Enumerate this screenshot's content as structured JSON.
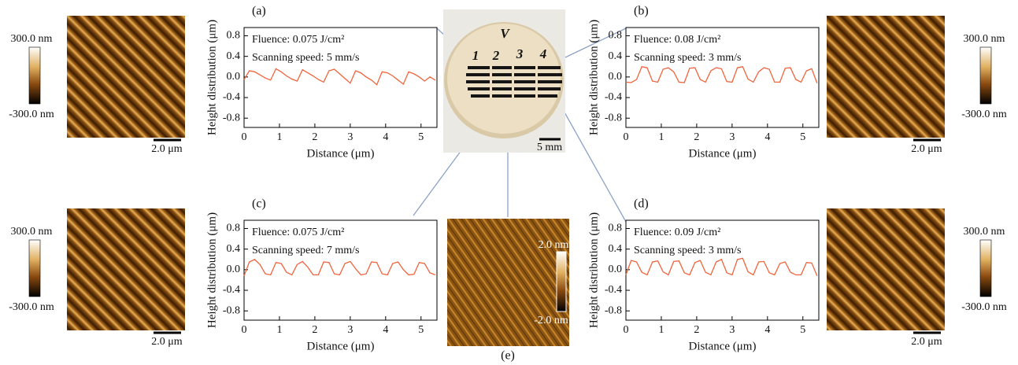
{
  "chart_data": [
    {
      "type": "line",
      "panel": "(a)",
      "annotations": [
        "Fluence: 0.075 J/cm²",
        "Scanning speed: 5 mm/s"
      ],
      "x_label": "Distance (μm)",
      "y_label": "Height distribution (μm)",
      "xlim": [
        0,
        5.45
      ],
      "ylim": [
        -0.98,
        0.96
      ],
      "xticks": [
        0,
        1,
        2,
        3,
        4,
        5
      ],
      "yticks": [
        0.8,
        0.4,
        {
          "value": 0,
          "label": "0.0"
        },
        -0.4,
        -0.8
      ],
      "x": [
        0,
        0.15,
        0.3,
        0.45,
        0.6,
        0.75,
        0.9,
        1.05,
        1.2,
        1.35,
        1.5,
        1.65,
        1.8,
        1.95,
        2.1,
        2.25,
        2.4,
        2.55,
        2.7,
        2.85,
        3,
        3.15,
        3.3,
        3.45,
        3.6,
        3.75,
        3.9,
        4.05,
        4.2,
        4.35,
        4.5,
        4.65,
        4.8,
        4.95,
        5.1,
        5.25,
        5.4
      ],
      "series": [
        {
          "color": "#f0643c",
          "values": [
            -0.05,
            0.12,
            0.1,
            0.04,
            -0.02,
            -0.06,
            0.16,
            0.1,
            0.02,
            -0.04,
            -0.08,
            0.14,
            0.08,
            0.02,
            -0.05,
            -0.1,
            0.12,
            0.15,
            0.06,
            -0.03,
            -0.12,
            0.12,
            0.08,
            0.0,
            -0.06,
            -0.15,
            0.1,
            0.08,
            0.02,
            -0.06,
            -0.14,
            0.1,
            0.06,
            0.0,
            -0.08,
            0.0,
            -0.06
          ]
        }
      ]
    },
    {
      "type": "line",
      "panel": "(b)",
      "annotations": [
        "Fluence: 0.08 J/cm²",
        "Scanning speed: 3 mm/s"
      ],
      "x_label": "Distance (μm)",
      "y_label": "Height distribution (μm)",
      "xlim": [
        0,
        5.45
      ],
      "ylim": [
        -0.98,
        0.96
      ],
      "xticks": [
        0,
        1,
        2,
        3,
        4,
        5
      ],
      "yticks": [
        0.8,
        0.4,
        {
          "value": 0,
          "label": "0.0"
        },
        -0.4,
        -0.8
      ],
      "x": [
        0,
        0.15,
        0.3,
        0.45,
        0.6,
        0.75,
        0.9,
        1.05,
        1.2,
        1.35,
        1.5,
        1.65,
        1.8,
        1.95,
        2.1,
        2.25,
        2.4,
        2.55,
        2.7,
        2.85,
        3,
        3.15,
        3.3,
        3.45,
        3.6,
        3.75,
        3.9,
        4.05,
        4.2,
        4.35,
        4.5,
        4.65,
        4.8,
        4.95,
        5.1,
        5.25,
        5.4
      ],
      "series": [
        {
          "color": "#f0643c",
          "values": [
            -0.1,
            -0.11,
            -0.05,
            0.2,
            0.18,
            -0.08,
            -0.1,
            0.15,
            0.18,
            0.1,
            -0.1,
            -0.11,
            0.17,
            0.18,
            -0.05,
            -0.1,
            0.12,
            0.18,
            0.16,
            -0.09,
            -0.1,
            0.18,
            0.2,
            -0.04,
            -0.1,
            0.1,
            0.18,
            0.15,
            -0.1,
            -0.1,
            0.17,
            0.18,
            -0.05,
            -0.1,
            0.12,
            0.16,
            -0.12
          ]
        }
      ]
    },
    {
      "type": "line",
      "panel": "(c)",
      "annotations": [
        "Fluence: 0.075 J/cm²",
        "Scanning speed: 7 mm/s"
      ],
      "x_label": "Distance (μm)",
      "y_label": "Height distribution (μm)",
      "xlim": [
        0,
        5.45
      ],
      "ylim": [
        -0.98,
        0.96
      ],
      "xticks": [
        0,
        1,
        2,
        3,
        4,
        5
      ],
      "yticks": [
        0.8,
        0.4,
        {
          "value": 0,
          "label": "0.0"
        },
        -0.4,
        -0.8
      ],
      "x": [
        0,
        0.15,
        0.3,
        0.45,
        0.6,
        0.75,
        0.9,
        1.05,
        1.2,
        1.35,
        1.5,
        1.65,
        1.8,
        1.95,
        2.1,
        2.25,
        2.4,
        2.55,
        2.7,
        2.85,
        3,
        3.15,
        3.3,
        3.45,
        3.6,
        3.75,
        3.9,
        4.05,
        4.2,
        4.35,
        4.5,
        4.65,
        4.8,
        4.95,
        5.1,
        5.25,
        5.4
      ],
      "series": [
        {
          "color": "#f0643c",
          "values": [
            -0.12,
            0.15,
            0.2,
            0.1,
            -0.08,
            -0.1,
            0.14,
            0.12,
            -0.05,
            -0.1,
            0.1,
            0.16,
            0.05,
            -0.1,
            -0.1,
            0.15,
            0.14,
            -0.08,
            -0.1,
            0.12,
            0.16,
            0.02,
            -0.1,
            -0.08,
            0.15,
            0.14,
            -0.08,
            -0.1,
            0.12,
            0.15,
            0.0,
            -0.1,
            -0.09,
            0.14,
            0.12,
            -0.06,
            -0.1
          ]
        }
      ]
    },
    {
      "type": "line",
      "panel": "(d)",
      "annotations": [
        "Fluence: 0.09 J/cm²",
        "Scanning speed: 3 mm/s"
      ],
      "x_label": "Distance (μm)",
      "y_label": "Height distribution (μm)",
      "xlim": [
        0,
        5.45
      ],
      "ylim": [
        -0.98,
        0.96
      ],
      "xticks": [
        0,
        1,
        2,
        3,
        4,
        5
      ],
      "yticks": [
        0.8,
        0.4,
        {
          "value": 0,
          "label": "0.0"
        },
        -0.4,
        -0.8
      ],
      "x": [
        0,
        0.15,
        0.3,
        0.45,
        0.6,
        0.75,
        0.9,
        1.05,
        1.2,
        1.35,
        1.5,
        1.65,
        1.8,
        1.95,
        2.1,
        2.25,
        2.4,
        2.55,
        2.7,
        2.85,
        3,
        3.15,
        3.3,
        3.45,
        3.6,
        3.75,
        3.9,
        4.05,
        4.2,
        4.35,
        4.5,
        4.65,
        4.8,
        4.95,
        5.1,
        5.25,
        5.4
      ],
      "series": [
        {
          "color": "#f0643c",
          "values": [
            -0.1,
            0.18,
            0.15,
            -0.05,
            -0.1,
            0.15,
            0.17,
            -0.04,
            -0.1,
            0.16,
            0.17,
            -0.06,
            -0.1,
            0.14,
            0.18,
            -0.05,
            -0.1,
            0.15,
            0.2,
            -0.06,
            -0.1,
            0.2,
            0.22,
            -0.04,
            -0.1,
            0.15,
            0.16,
            -0.06,
            -0.1,
            0.12,
            0.15,
            -0.05,
            -0.1,
            -0.1,
            0.14,
            0.13,
            -0.12
          ]
        }
      ]
    }
  ],
  "afm_images": [
    {
      "colorbar_max": "300.0 nm",
      "colorbar_min": "-300.0 nm",
      "scale_bar": "2.0 μm"
    },
    {
      "colorbar_max": "300.0 nm",
      "colorbar_min": "-300.0 nm",
      "scale_bar": "2.0 μm"
    },
    {
      "colorbar_max": "300.0 nm",
      "colorbar_min": "-300.0 nm",
      "scale_bar": "2.0 μm"
    },
    {
      "colorbar_max": "300.0 nm",
      "colorbar_min": "-300.0 nm",
      "scale_bar": "2.0 μm"
    }
  ],
  "photo": {
    "marks": [
      "V",
      "1",
      "2",
      "3",
      "4"
    ],
    "scale_bar": "5 mm"
  },
  "substrate_image": {
    "panel": "(e)",
    "colorbar_max": "2.0 nm",
    "colorbar_min": "-2.0 nm"
  }
}
